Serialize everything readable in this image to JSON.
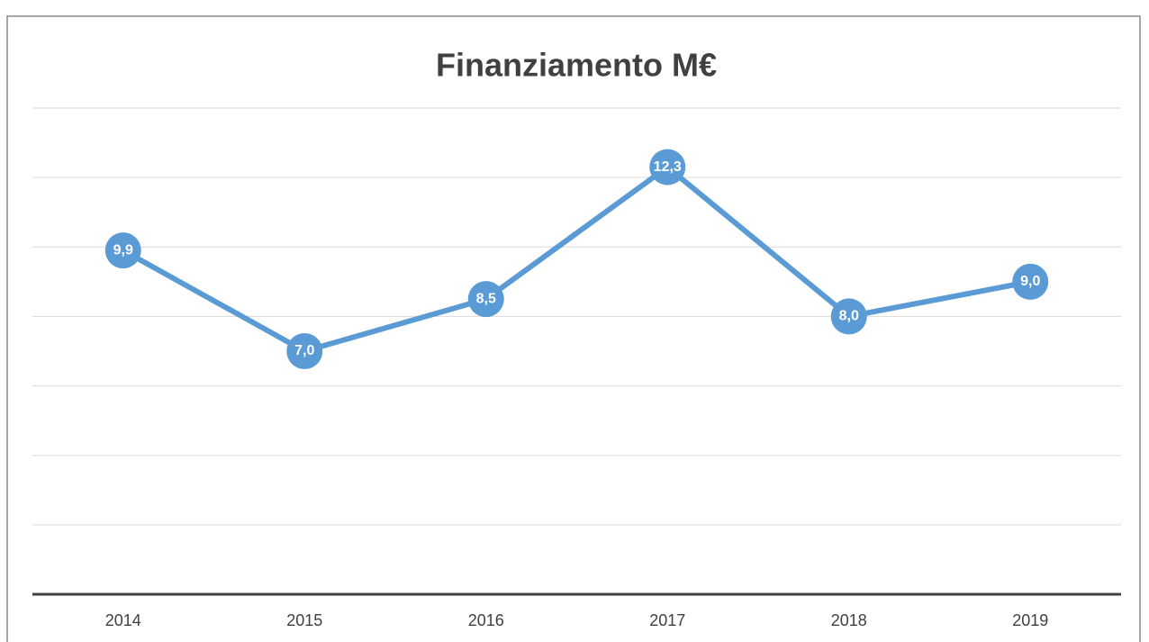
{
  "chart_data": {
    "type": "line",
    "title": "Finanziamento M€",
    "categories": [
      "2014",
      "2015",
      "2016",
      "2017",
      "2018",
      "2019"
    ],
    "series": [
      {
        "name": "Finanziamento M€",
        "color": "#5b9bd5",
        "values": [
          9.9,
          7.0,
          8.5,
          12.3,
          8.0,
          9.0
        ],
        "value_labels": [
          "9,9",
          "7,0",
          "8,5",
          "12,3",
          "8,0",
          "9,0"
        ]
      }
    ],
    "ylim": [
      0,
      14
    ],
    "yticks": [
      0,
      2,
      4,
      6,
      8,
      10,
      12,
      14
    ],
    "grid": true
  }
}
